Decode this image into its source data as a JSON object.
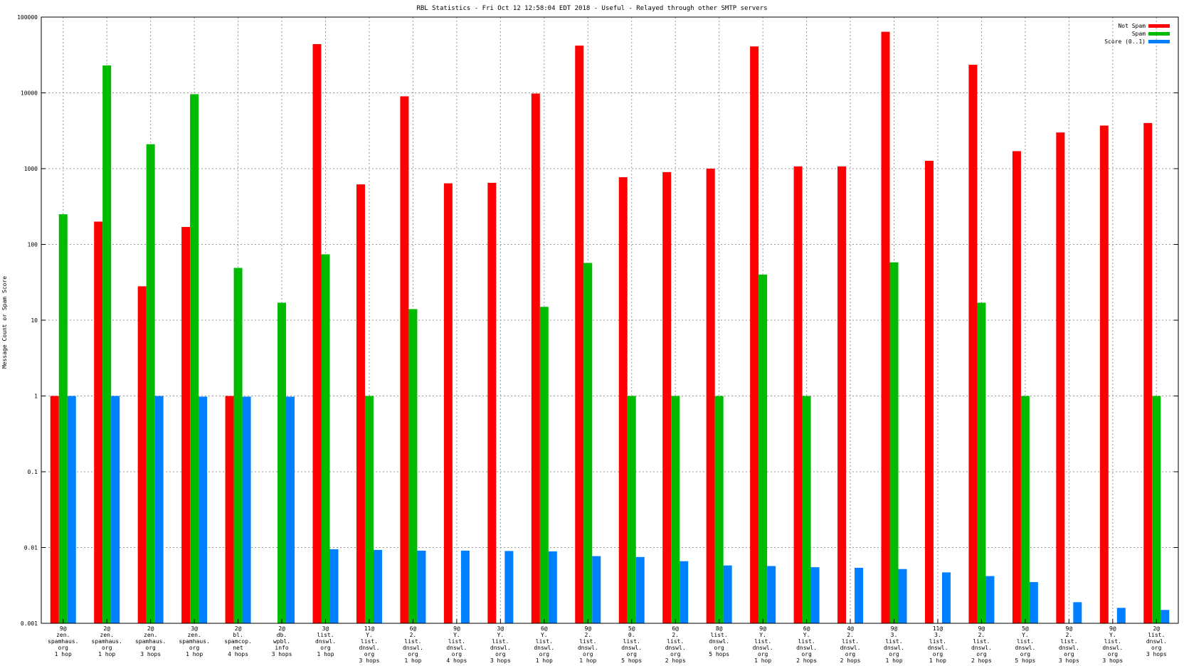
{
  "chart_data": {
    "type": "bar",
    "title": "RBL Statistics - Fri Oct 12 12:58:04 EDT 2018 - Useful - Relayed through other SMTP servers",
    "ylabel": "Message Count or Spam Score",
    "xlabel": "",
    "yscale": "log",
    "ylim": [
      0.001,
      100000
    ],
    "y_ticks": [
      "0.001",
      "0.01",
      "0.1",
      "1",
      "10",
      "100",
      "1000",
      "10000",
      "100000"
    ],
    "grid": true,
    "legend_position": "top-right",
    "colors": {
      "Not Spam": "#ff0000",
      "Spam": "#00bb00",
      "Score (0..1)": "#0080ff"
    },
    "categories": [
      [
        "9@",
        "zen.",
        "spamhaus.",
        "org",
        "1 hop"
      ],
      [
        "2@",
        "zen.",
        "spamhaus.",
        "org",
        "1 hop"
      ],
      [
        "2@",
        "zen.",
        "spamhaus.",
        "org",
        "3 hops"
      ],
      [
        "3@",
        "zen.",
        "spamhaus.",
        "org",
        "1 hop"
      ],
      [
        "2@",
        "bl.",
        "spamcop.",
        "net",
        "4 hops"
      ],
      [
        "2@",
        "db.",
        "wpbl.",
        "info",
        "3 hops"
      ],
      [
        "3@",
        "list.",
        "dnswl.",
        "org",
        "1 hop"
      ],
      [
        "11@",
        "Y.",
        "list.",
        "dnswl.",
        "org",
        "3 hops"
      ],
      [
        "6@",
        "2.",
        "list.",
        "dnswl.",
        "org",
        "1 hop"
      ],
      [
        "9@",
        "Y.",
        "list.",
        "dnswl.",
        "org",
        "4 hops"
      ],
      [
        "3@",
        "Y.",
        "list.",
        "dnswl.",
        "org",
        "3 hops"
      ],
      [
        "6@",
        "Y.",
        "list.",
        "dnswl.",
        "org",
        "1 hop"
      ],
      [
        "9@",
        "2.",
        "list.",
        "dnswl.",
        "org",
        "1 hop"
      ],
      [
        "5@",
        "0.",
        "list.",
        "dnswl.",
        "org",
        "5 hops"
      ],
      [
        "6@",
        "2.",
        "list.",
        "dnswl.",
        "org",
        "2 hops"
      ],
      [
        "8@",
        "list.",
        "dnswl.",
        "org",
        "5 hops"
      ],
      [
        "9@",
        "Y.",
        "list.",
        "dnswl.",
        "org",
        "1 hop"
      ],
      [
        "6@",
        "Y.",
        "list.",
        "dnswl.",
        "org",
        "2 hops"
      ],
      [
        "4@",
        "2.",
        "list.",
        "dnswl.",
        "org",
        "2 hops"
      ],
      [
        "9@",
        "3.",
        "list.",
        "dnswl.",
        "org",
        "1 hop"
      ],
      [
        "11@",
        "3.",
        "list.",
        "dnswl.",
        "org",
        "1 hop"
      ],
      [
        "9@",
        "2.",
        "list.",
        "dnswl.",
        "org",
        "2 hops"
      ],
      [
        "5@",
        "Y.",
        "list.",
        "dnswl.",
        "org",
        "5 hops"
      ],
      [
        "9@",
        "2.",
        "list.",
        "dnswl.",
        "org",
        "3 hops"
      ],
      [
        "9@",
        "Y.",
        "list.",
        "dnswl.",
        "org",
        "3 hops"
      ],
      [
        "2@",
        "list.",
        "dnswl.",
        "org",
        "3 hops"
      ]
    ],
    "series": [
      {
        "name": "Not Spam",
        "values": [
          1,
          200,
          28,
          170,
          1,
          null,
          44000,
          620,
          9000,
          640,
          650,
          9800,
          42000,
          770,
          900,
          1000,
          41000,
          1070,
          1070,
          64000,
          1270,
          23500,
          1700,
          3000,
          3700,
          4000
        ]
      },
      {
        "name": "Spam",
        "values": [
          250,
          23000,
          2100,
          9600,
          49,
          17,
          74,
          1,
          14,
          null,
          null,
          15,
          57,
          1,
          1,
          1,
          40,
          1,
          null,
          58,
          null,
          17,
          1,
          null,
          null,
          1
        ]
      },
      {
        "name": "Score (0..1)",
        "values": [
          1,
          1,
          1,
          0.98,
          0.98,
          0.98,
          0.0095,
          0.0093,
          0.0091,
          0.0091,
          0.009,
          0.0089,
          0.0077,
          0.0075,
          0.0066,
          0.0058,
          0.0057,
          0.0055,
          0.0054,
          0.0052,
          0.0047,
          0.0042,
          0.0035,
          0.0019,
          0.0016,
          0.0015
        ]
      }
    ]
  }
}
